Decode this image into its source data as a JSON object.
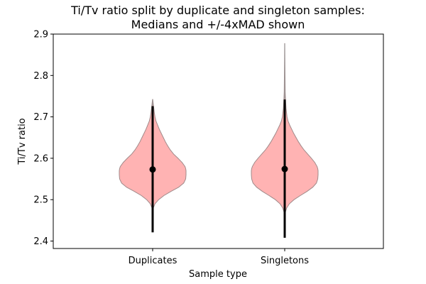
{
  "chart_data": {
    "type": "violin",
    "title_lines": [
      "Ti/Tv ratio split by duplicate and singleton samples:",
      "Medians and +/-4xMAD shown"
    ],
    "xlabel": "Sample type",
    "ylabel": "Ti/Tv ratio",
    "ylim": [
      2.382,
      2.9
    ],
    "yticks": [
      "2.4",
      "2.5",
      "2.6",
      "2.7",
      "2.8",
      "2.9"
    ],
    "categories": [
      "Duplicates",
      "Singletons"
    ],
    "series": [
      {
        "category": "Duplicates",
        "median": 2.573,
        "mad_low": 2.421,
        "mad_high": 2.726,
        "min": 2.482,
        "max": 2.742,
        "kde_y": [
          2.482,
          2.49,
          2.5,
          2.51,
          2.52,
          2.53,
          2.54,
          2.55,
          2.56,
          2.57,
          2.575,
          2.58,
          2.59,
          2.6,
          2.61,
          2.62,
          2.63,
          2.64,
          2.65,
          2.66,
          2.67,
          2.68,
          2.69,
          2.7,
          2.71,
          2.72,
          2.73,
          2.742
        ],
        "kde_w": [
          0.03,
          0.07,
          0.18,
          0.34,
          0.55,
          0.78,
          0.93,
          0.99,
          1.0,
          1.0,
          0.99,
          0.97,
          0.88,
          0.76,
          0.63,
          0.53,
          0.45,
          0.38,
          0.32,
          0.26,
          0.2,
          0.15,
          0.1,
          0.07,
          0.05,
          0.035,
          0.02,
          0.005
        ]
      },
      {
        "category": "Singletons",
        "median": 2.574,
        "mad_low": 2.408,
        "mad_high": 2.742,
        "min": 2.47,
        "max": 2.877,
        "kde_y": [
          2.47,
          2.48,
          2.49,
          2.5,
          2.51,
          2.52,
          2.53,
          2.54,
          2.55,
          2.56,
          2.57,
          2.575,
          2.58,
          2.59,
          2.6,
          2.61,
          2.62,
          2.63,
          2.64,
          2.65,
          2.66,
          2.67,
          2.68,
          2.69,
          2.7,
          2.72,
          2.74,
          2.76,
          2.8,
          2.84,
          2.877
        ],
        "kde_w": [
          0.02,
          0.06,
          0.14,
          0.28,
          0.47,
          0.67,
          0.84,
          0.95,
          0.99,
          1.0,
          1.0,
          0.99,
          0.97,
          0.9,
          0.8,
          0.69,
          0.58,
          0.49,
          0.41,
          0.34,
          0.27,
          0.21,
          0.15,
          0.1,
          0.07,
          0.04,
          0.025,
          0.015,
          0.01,
          0.006,
          0.003
        ]
      }
    ],
    "colors": {
      "violin_fill": "#ffb3b3",
      "violin_edge": "#a08a8a",
      "range_line": "#9a9a9a",
      "mad_line": "#000000",
      "median_dot": "#000000"
    },
    "grid": false,
    "legend": "none"
  }
}
